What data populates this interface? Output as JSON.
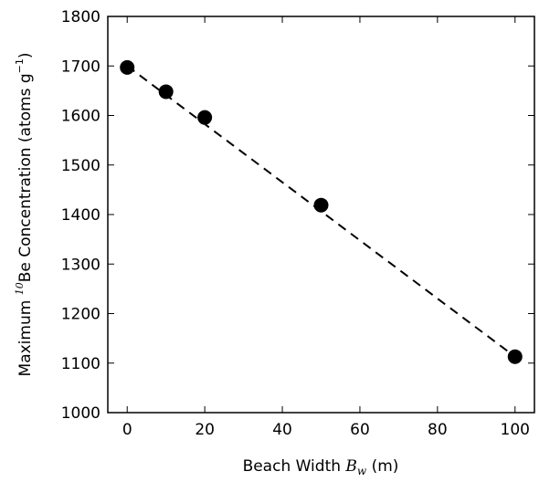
{
  "chart_data": {
    "type": "scatter",
    "title": "",
    "xlabel": {
      "prefix": "Beach Width ",
      "symbol": "B",
      "subscript": "w",
      "suffix": " (m)"
    },
    "ylabel": {
      "prefix": "Maximum ",
      "isotope_mass": "10",
      "main": "Be Concentration (atoms g",
      "exponent": "−1",
      "suffix": ")"
    },
    "xlim": [
      -5,
      105
    ],
    "ylim": [
      1000,
      1800
    ],
    "xticks": [
      0,
      20,
      40,
      60,
      80,
      100
    ],
    "yticks": [
      1000,
      1100,
      1200,
      1300,
      1400,
      1500,
      1600,
      1700,
      1800
    ],
    "grid": false,
    "points": {
      "x": [
        0,
        10,
        20,
        50,
        100
      ],
      "y": [
        1697,
        1648,
        1596,
        1419,
        1113
      ],
      "color": "#000000",
      "marker": "circle"
    },
    "fit_line": {
      "x": [
        0,
        100
      ],
      "y": [
        1700,
        1113
      ],
      "style": "dashed",
      "color": "#000000"
    }
  }
}
